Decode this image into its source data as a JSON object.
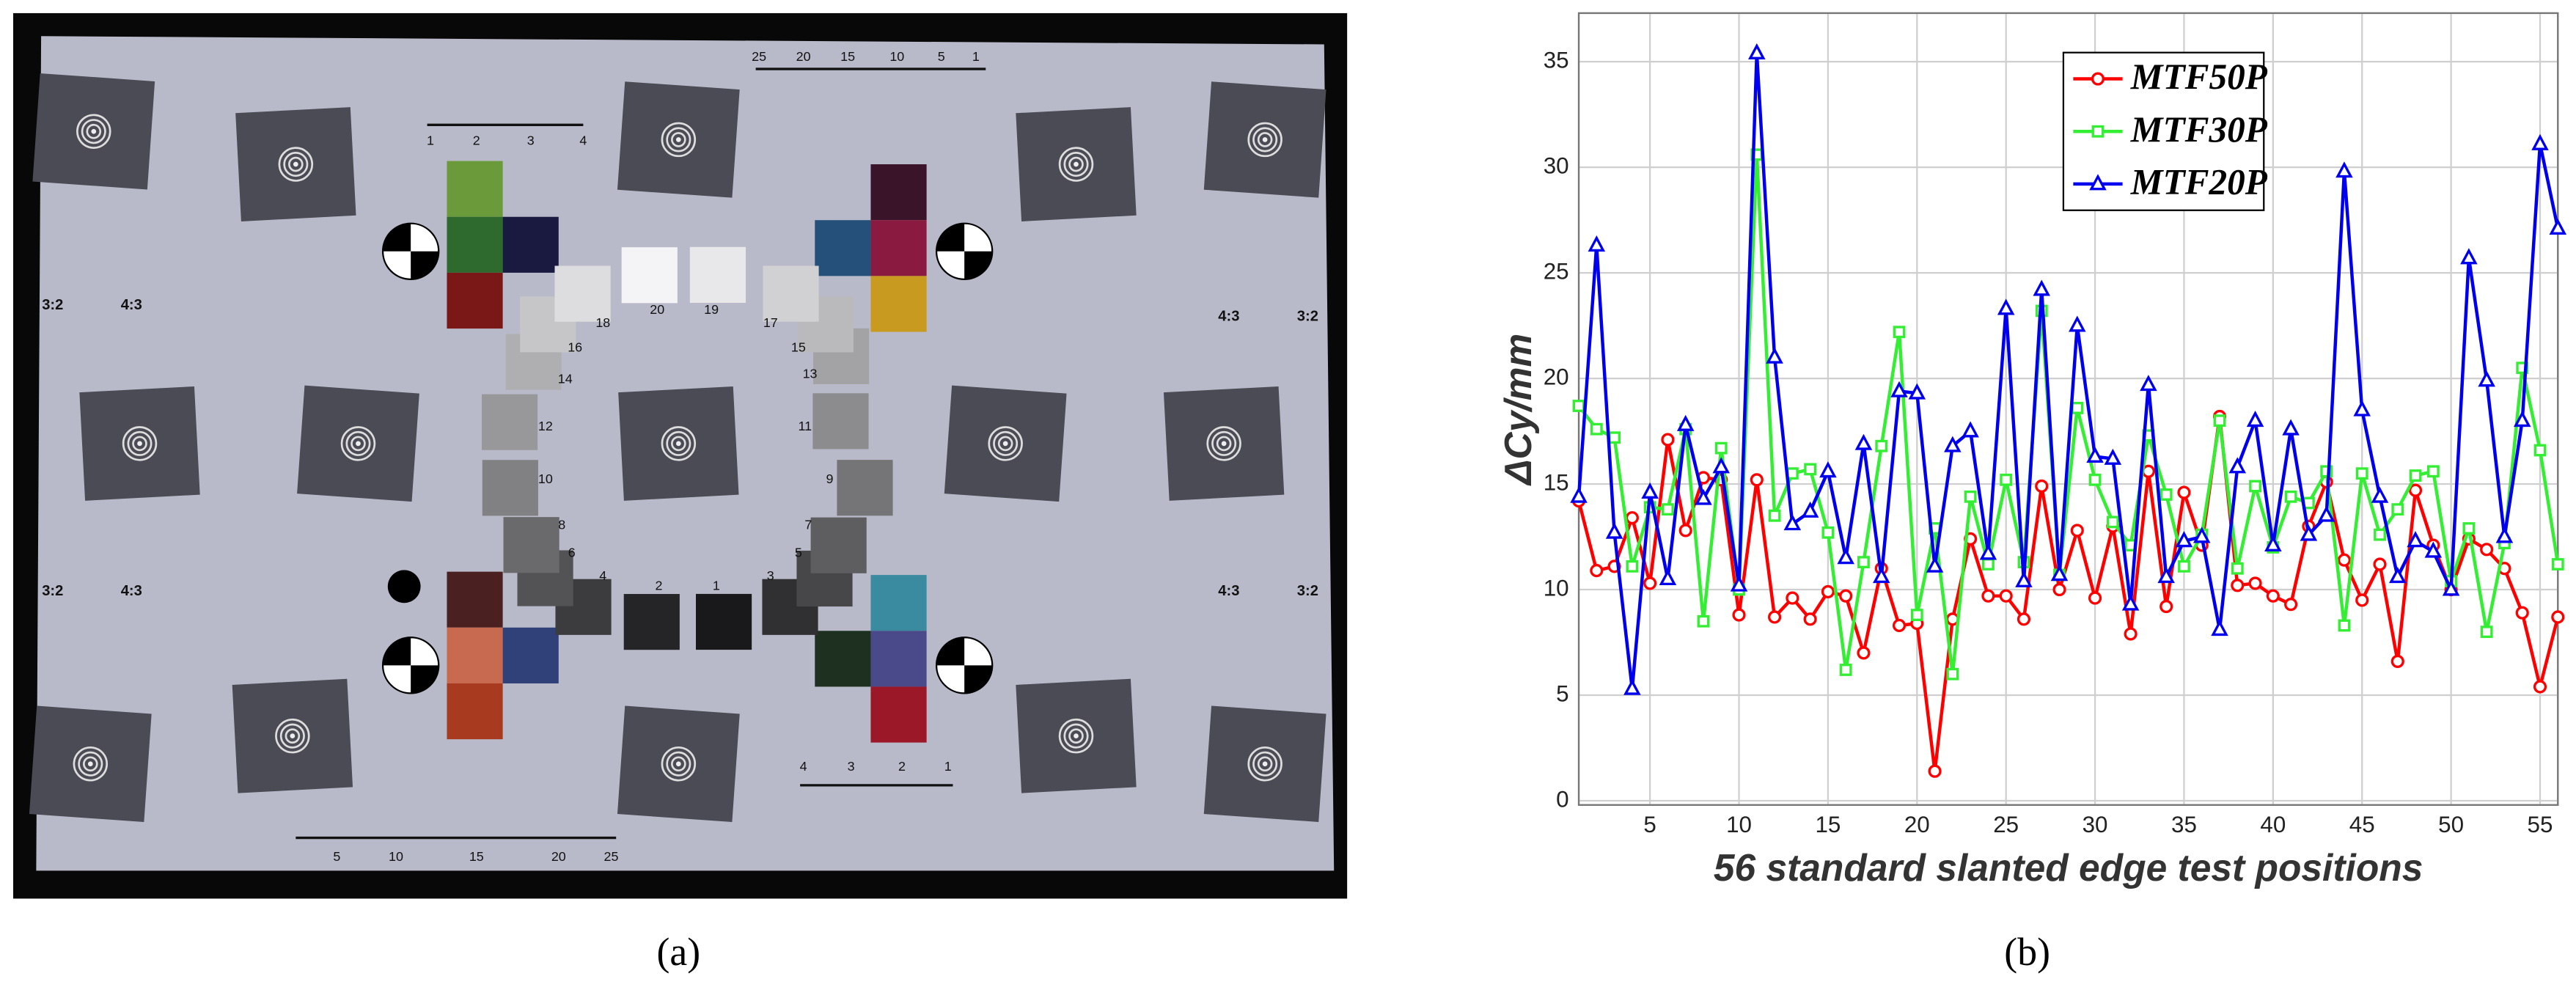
{
  "panel_labels": {
    "a": "(a)",
    "b": "(b)"
  },
  "photo": {
    "patch_numbers": [
      "1",
      "2",
      "3",
      "4",
      "5",
      "6",
      "7",
      "8",
      "9",
      "10",
      "11",
      "12",
      "13",
      "14",
      "15",
      "16",
      "17",
      "18",
      "19",
      "20"
    ],
    "aspect_labels": [
      "3:2",
      "4:3",
      "3:2",
      "4:3",
      "4:3",
      "3:2",
      "4:3",
      "3:2"
    ],
    "top_scale": [
      "25",
      "20",
      "15",
      "10",
      "5",
      "1"
    ],
    "bottom_scale": [
      "5",
      "10",
      "15",
      "20",
      "25"
    ],
    "small_scale_top": [
      "1",
      "2",
      "3",
      "4"
    ],
    "small_scale_bottom": [
      "4",
      "3",
      "2",
      "1"
    ]
  },
  "chart_data": {
    "type": "line",
    "xlabel": "56 standard slanted edge test positions",
    "ylabel": "ΔCy/mm",
    "x": [
      1,
      2,
      3,
      4,
      5,
      6,
      7,
      8,
      9,
      10,
      11,
      12,
      13,
      14,
      15,
      16,
      17,
      18,
      19,
      20,
      21,
      22,
      23,
      24,
      25,
      26,
      27,
      28,
      29,
      30,
      31,
      32,
      33,
      34,
      35,
      36,
      37,
      38,
      39,
      40,
      41,
      42,
      43,
      44,
      45,
      46,
      47,
      48,
      49,
      50,
      51,
      52,
      53,
      54,
      55,
      56
    ],
    "xlim": [
      1,
      56
    ],
    "xticks": [
      5,
      10,
      15,
      20,
      25,
      30,
      35,
      40,
      45,
      50,
      55
    ],
    "ylim": [
      -0.2,
      37.3
    ],
    "yticks": [
      0,
      5,
      10,
      15,
      20,
      25,
      30,
      35
    ],
    "grid": true,
    "legend": "upper center",
    "series": [
      {
        "name": "MTF50P",
        "color": "#ff0000",
        "marker": "circle",
        "values": [
          14.2,
          10.9,
          11.1,
          13.4,
          10.3,
          17.1,
          12.8,
          15.3,
          15.2,
          8.8,
          15.2,
          8.7,
          9.6,
          8.6,
          9.9,
          9.7,
          7.0,
          11.0,
          8.3,
          8.4,
          1.4,
          8.6,
          12.4,
          9.7,
          9.7,
          8.6,
          14.9,
          10.0,
          12.8,
          9.6,
          13.0,
          7.9,
          15.6,
          9.2,
          14.6,
          12.1,
          18.2,
          10.2,
          10.3,
          9.7,
          9.3,
          13.0,
          15.1,
          11.4,
          9.5,
          11.2,
          6.6,
          14.7,
          12.1,
          10.0,
          12.4,
          11.9,
          11.0,
          8.9,
          5.4,
          8.7
        ]
      },
      {
        "name": "MTF30P",
        "color": "#33ee33",
        "marker": "square",
        "values": [
          18.7,
          17.6,
          17.2,
          11.1,
          13.9,
          13.8,
          17.6,
          8.5,
          16.7,
          10.0,
          30.6,
          13.5,
          15.5,
          15.7,
          12.7,
          6.2,
          11.3,
          16.8,
          22.2,
          8.8,
          12.9,
          6.0,
          14.4,
          11.2,
          15.2,
          11.3,
          23.2,
          10.7,
          18.6,
          15.2,
          13.2,
          12.1,
          17.3,
          14.5,
          11.1,
          12.6,
          18.0,
          11.0,
          14.9,
          12.0,
          14.4,
          14.1,
          15.6,
          8.3,
          15.5,
          12.6,
          13.8,
          15.4,
          15.6,
          10.4,
          12.9,
          8.0,
          12.2,
          20.5,
          16.6,
          11.2
        ]
      },
      {
        "name": "MTF20P",
        "color": "#0000ee",
        "marker": "triangle",
        "values": [
          14.4,
          26.3,
          12.7,
          5.3,
          14.6,
          10.5,
          17.8,
          14.3,
          15.8,
          10.2,
          35.4,
          21.0,
          13.1,
          13.7,
          15.6,
          11.5,
          16.9,
          10.6,
          19.4,
          19.3,
          11.1,
          16.8,
          17.5,
          11.7,
          23.3,
          10.4,
          24.2,
          10.7,
          22.5,
          16.3,
          16.2,
          9.3,
          19.7,
          10.6,
          12.3,
          12.5,
          8.1,
          15.8,
          18.0,
          12.1,
          17.6,
          12.6,
          13.5,
          29.8,
          18.5,
          14.4,
          10.6,
          12.3,
          11.8,
          10.0,
          25.7,
          19.9,
          12.5,
          18.0,
          31.1,
          27.1
        ]
      }
    ]
  }
}
